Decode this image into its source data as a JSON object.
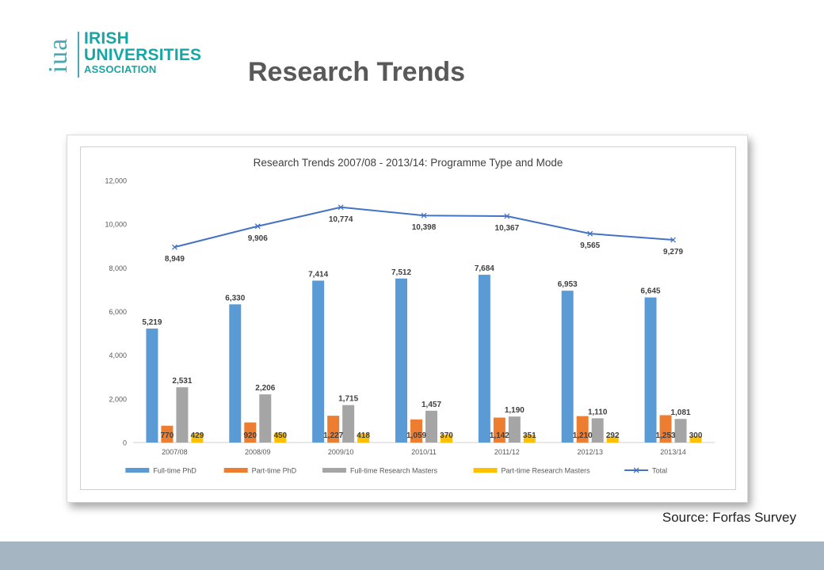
{
  "logo": {
    "mark": "iua",
    "lines": [
      "IRISH",
      "UNIVERSITIES",
      "ASSOCIATION"
    ]
  },
  "slide_title": "Research Trends",
  "source": "Source: Forfas Survey",
  "colors": {
    "full_time_phd": "#5b9bd5",
    "part_time_phd": "#ed7d31",
    "full_time_research_masters": "#a5a5a5",
    "part_time_research_masters": "#ffc000",
    "total": "#4472c4",
    "bottom_band": "#a5b5c1",
    "logo": "#17a6a6"
  },
  "chart_data": {
    "type": "bar",
    "title": "Research Trends 2007/08 - 2013/14: Programme Type and Mode",
    "categories": [
      "2007/08",
      "2008/09",
      "2009/10",
      "2010/11",
      "2011/12",
      "2012/13",
      "2013/14"
    ],
    "series": [
      {
        "name": "Full-time PhD",
        "type": "bar",
        "values": [
          5219,
          6330,
          7414,
          7512,
          7684,
          6953,
          6645
        ],
        "labels": [
          "5,219",
          "6,330",
          "7,414",
          "7,512",
          "7,684",
          "6,953",
          "6,645"
        ]
      },
      {
        "name": "Part-time PhD",
        "type": "bar",
        "values": [
          770,
          920,
          1227,
          1059,
          1142,
          1210,
          1253
        ],
        "labels": [
          "770",
          "920",
          "1,227",
          "1,059",
          "1,142",
          "1,210",
          "1,253"
        ]
      },
      {
        "name": "Full-time Research Masters",
        "type": "bar",
        "values": [
          2531,
          2206,
          1715,
          1457,
          1190,
          1110,
          1081
        ],
        "labels": [
          "2,531",
          "2,206",
          "1,715",
          "1,457",
          "1,190",
          "1,110",
          "1,081"
        ]
      },
      {
        "name": "Part-time Research Masters",
        "type": "bar",
        "values": [
          429,
          450,
          418,
          370,
          351,
          292,
          300
        ],
        "labels": [
          "429",
          "450",
          "418",
          "370",
          "351",
          "292",
          "300"
        ]
      },
      {
        "name": "Total",
        "type": "line",
        "values": [
          8949,
          9906,
          10774,
          10398,
          10367,
          9565,
          9279
        ],
        "labels": [
          "8,949",
          "9,906",
          "10,774",
          "10,398",
          "10,367",
          "9,565",
          "9,279"
        ]
      }
    ],
    "yticks": [
      "0",
      "2,000",
      "4,000",
      "6,000",
      "8,000",
      "10,000",
      "12,000"
    ],
    "ylim": [
      0,
      12000
    ],
    "legend": "bottom",
    "grid": false
  }
}
